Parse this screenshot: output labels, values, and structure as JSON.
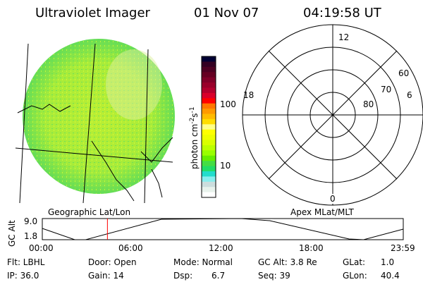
{
  "header": {
    "instrument": "Ultraviolet Imager",
    "date": "01 Nov 07",
    "time": "04:19:58 UT"
  },
  "colorbar": {
    "label": "photon cm^-2 s^-1",
    "label_main": "photon cm",
    "label_exp1": "-2",
    "label_s": "s",
    "label_exp2": "-1",
    "ticks": [
      "100",
      "10"
    ],
    "colors": [
      "#000033",
      "#330022",
      "#4d0022",
      "#660022",
      "#800028",
      "#99002a",
      "#b3002d",
      "#d9002a",
      "#ff0000",
      "#ff7700",
      "#ff9900",
      "#ffbb00",
      "#ffdd00",
      "#ffff88",
      "#ffff00",
      "#eeff00",
      "#d9ff00",
      "#bbff00",
      "#99ff00",
      "#66ee00",
      "#44dd44",
      "#22dd66",
      "#22ddcc",
      "#88eeee",
      "#ccdddd",
      "#e8f2ec",
      "#ffffff"
    ]
  },
  "polar": {
    "ring_labels": [
      "60",
      "70",
      "80"
    ],
    "mlt_labels": {
      "top": "12",
      "left": "18",
      "right": "6",
      "bottom": "0"
    }
  },
  "map_labels": {
    "left": "Geographic Lat/Lon",
    "right": "Apex MLat/MLT"
  },
  "alt_plot": {
    "ylabel": "GC Alt",
    "yticks": [
      "9.0",
      "1.8"
    ],
    "ylim": [
      1.8,
      9.0
    ],
    "xticks": [
      "00:00",
      "06:00",
      "12:00",
      "18:00",
      "23:59"
    ],
    "current_time_hours": 4.33,
    "curve_color": "#000000",
    "marker_color": "#ff0000"
  },
  "status": {
    "flt": "Flt: LBHL",
    "door": "Door: Open",
    "mode": "Mode: Normal",
    "gcalt": "GC Alt: 3.8 Re",
    "glat_label": "GLat:",
    "glat": "1.0",
    "ip": "IP: 36.0",
    "gain": "Gain: 14",
    "dsp_label": "Dsp:",
    "dsp": "6.7",
    "seq": "Seq: 39",
    "glon_label": "GLon:",
    "glon": "40.4"
  }
}
